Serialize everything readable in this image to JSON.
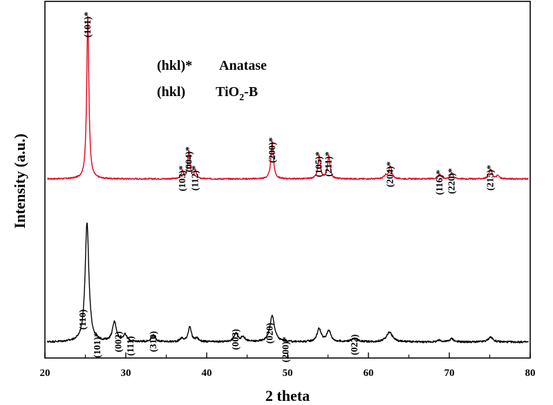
{
  "chart_data": {
    "type": "line",
    "xlabel": "2 theta",
    "ylabel": "Intensity (a.u.)",
    "xlim": [
      20,
      80
    ],
    "xticks": [
      "20",
      "30",
      "40",
      "50",
      "60",
      "70",
      "80"
    ],
    "legend": [
      {
        "symbol": "(hkl)*",
        "label": "Anatase"
      },
      {
        "symbol": "(hkl)",
        "label_main": "TiO",
        "label_sub": "2",
        "label_tail": "-B"
      }
    ],
    "series": [
      {
        "color": "#e0001a",
        "offset": 1.0,
        "baseline": 0.03,
        "noise": 0.004,
        "peaks": [
          {
            "x": 25.3,
            "h": 1.0,
            "w": 0.16
          },
          {
            "x": 37.0,
            "h": 0.05,
            "w": 0.15
          },
          {
            "x": 37.8,
            "h": 0.17,
            "w": 0.16
          },
          {
            "x": 38.6,
            "h": 0.05,
            "w": 0.15
          },
          {
            "x": 48.1,
            "h": 0.23,
            "w": 0.18
          },
          {
            "x": 53.9,
            "h": 0.14,
            "w": 0.18
          },
          {
            "x": 55.1,
            "h": 0.14,
            "w": 0.18
          },
          {
            "x": 62.1,
            "h": 0.02,
            "w": 0.2
          },
          {
            "x": 62.7,
            "h": 0.08,
            "w": 0.2
          },
          {
            "x": 68.8,
            "h": 0.03,
            "w": 0.2
          },
          {
            "x": 70.3,
            "h": 0.04,
            "w": 0.2
          },
          {
            "x": 75.1,
            "h": 0.06,
            "w": 0.22
          },
          {
            "x": 76.0,
            "h": 0.02,
            "w": 0.2
          }
        ],
        "peak_labels": [
          {
            "x": 25.3,
            "text": "(101)*"
          },
          {
            "x": 37.0,
            "text": "(103)*"
          },
          {
            "x": 37.8,
            "text": "(004)*"
          },
          {
            "x": 38.6,
            "text": "(112)*"
          },
          {
            "x": 48.1,
            "text": "(200)*"
          },
          {
            "x": 53.9,
            "text": "(105)*"
          },
          {
            "x": 55.1,
            "text": "(211)*"
          },
          {
            "x": 62.7,
            "text": "(204)*"
          },
          {
            "x": 68.8,
            "text": "(116)*"
          },
          {
            "x": 70.3,
            "text": "(220)*"
          },
          {
            "x": 75.1,
            "text": "(215)*"
          }
        ]
      },
      {
        "color": "#000000",
        "offset": 0.0,
        "baseline": 0.03,
        "noise": 0.006,
        "peaks": [
          {
            "x": 25.2,
            "h": 0.73,
            "w": 0.28
          },
          {
            "x": 28.6,
            "h": 0.12,
            "w": 0.3
          },
          {
            "x": 29.9,
            "h": 0.04,
            "w": 0.3
          },
          {
            "x": 33.4,
            "h": 0.04,
            "w": 0.3
          },
          {
            "x": 36.9,
            "h": 0.02,
            "w": 0.25
          },
          {
            "x": 37.9,
            "h": 0.09,
            "w": 0.25
          },
          {
            "x": 38.8,
            "h": 0.02,
            "w": 0.25
          },
          {
            "x": 43.6,
            "h": 0.05,
            "w": 0.3
          },
          {
            "x": 44.5,
            "h": 0.03,
            "w": 0.3
          },
          {
            "x": 48.1,
            "h": 0.16,
            "w": 0.35
          },
          {
            "x": 53.9,
            "h": 0.08,
            "w": 0.3
          },
          {
            "x": 55.1,
            "h": 0.07,
            "w": 0.3
          },
          {
            "x": 58.3,
            "h": 0.02,
            "w": 0.5
          },
          {
            "x": 62.6,
            "h": 0.06,
            "w": 0.45
          },
          {
            "x": 68.8,
            "h": 0.01,
            "w": 0.3
          },
          {
            "x": 70.3,
            "h": 0.02,
            "w": 0.3
          },
          {
            "x": 75.1,
            "h": 0.03,
            "w": 0.35
          }
        ],
        "peak_labels": [
          {
            "x": 24.7,
            "text": "(110)"
          },
          {
            "x": 26.5,
            "text": "(101)*"
          },
          {
            "x": 29.1,
            "text": "(002)"
          },
          {
            "x": 30.6,
            "text": "(111)"
          },
          {
            "x": 33.4,
            "text": "(310)"
          },
          {
            "x": 43.6,
            "text": "(003)"
          },
          {
            "x": 47.8,
            "text": "(020)"
          },
          {
            "x": 49.8,
            "text": "(200)*"
          },
          {
            "x": 58.3,
            "text": "(022)"
          }
        ]
      }
    ]
  }
}
